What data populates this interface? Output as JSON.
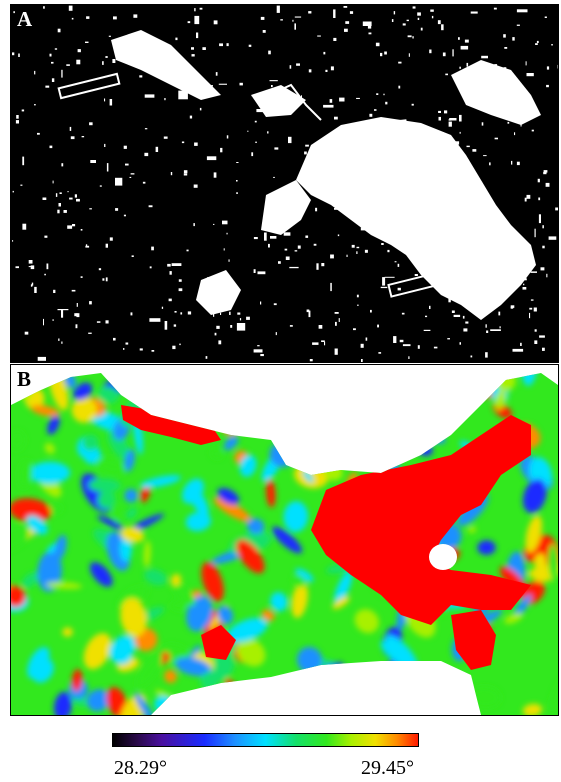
{
  "panels": [
    {
      "label": "A",
      "description_type": "binary thermal mask"
    },
    {
      "label": "B",
      "description_type": "temperature map"
    }
  ],
  "colorbar": {
    "min_label": "28.29°",
    "max_label": "29.45°",
    "colormap": [
      "#000000",
      "#4a10a0",
      "#1a2cff",
      "#1e90ff",
      "#00e0ff",
      "#14e06a",
      "#32e81e",
      "#a8f000",
      "#f0e000",
      "#ff8c00",
      "#ff1a00"
    ]
  },
  "colors": {
    "mask_background": "#000000",
    "mask_foreground": "#ffffff",
    "hot": "#ff0000",
    "cold": "#1a2cff"
  }
}
